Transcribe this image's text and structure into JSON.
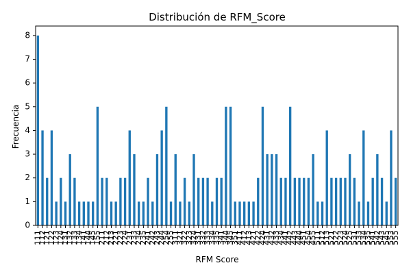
{
  "chart_data": {
    "type": "bar",
    "title": "Distribución de RFM_Score",
    "xlabel": "RFM Score",
    "ylabel": "Frecuencia",
    "ylim": [
      0,
      8.4
    ],
    "yticks": [
      0,
      1,
      2,
      3,
      4,
      5,
      6,
      7,
      8
    ],
    "bar_color": "#1f77b4",
    "grid": false,
    "categories": [
      "111",
      "112",
      "121",
      "122",
      "123",
      "124",
      "131",
      "132",
      "133",
      "134",
      "141",
      "144",
      "145",
      "155",
      "211",
      "212",
      "213",
      "221",
      "223",
      "224",
      "231",
      "233",
      "234",
      "235",
      "241",
      "242",
      "243",
      "244",
      "254",
      "255",
      "311",
      "321",
      "322",
      "323",
      "324",
      "331",
      "332",
      "333",
      "334",
      "335",
      "341",
      "344",
      "345",
      "351",
      "411",
      "412",
      "413",
      "421",
      "422",
      "424",
      "431",
      "432",
      "433",
      "434",
      "441",
      "442",
      "443",
      "444",
      "451",
      "454",
      "455",
      "511",
      "512",
      "513",
      "521",
      "522",
      "523",
      "524",
      "525",
      "531",
      "533",
      "534",
      "535",
      "541",
      "542",
      "543",
      "545",
      "553",
      "555"
    ],
    "values": [
      8,
      4,
      2,
      4,
      1,
      2,
      1,
      3,
      2,
      1,
      1,
      1,
      1,
      5,
      2,
      2,
      1,
      1,
      2,
      2,
      4,
      3,
      1,
      1,
      2,
      1,
      3,
      4,
      5,
      1,
      3,
      1,
      2,
      1,
      3,
      2,
      2,
      2,
      1,
      2,
      2,
      5,
      5,
      1,
      1,
      1,
      1,
      1,
      2,
      5,
      3,
      3,
      3,
      2,
      2,
      5,
      2,
      2,
      2,
      2,
      3,
      1,
      1,
      4,
      2,
      2,
      2,
      2,
      3,
      2,
      1,
      4,
      1,
      2,
      3,
      2,
      1,
      4,
      2
    ]
  }
}
